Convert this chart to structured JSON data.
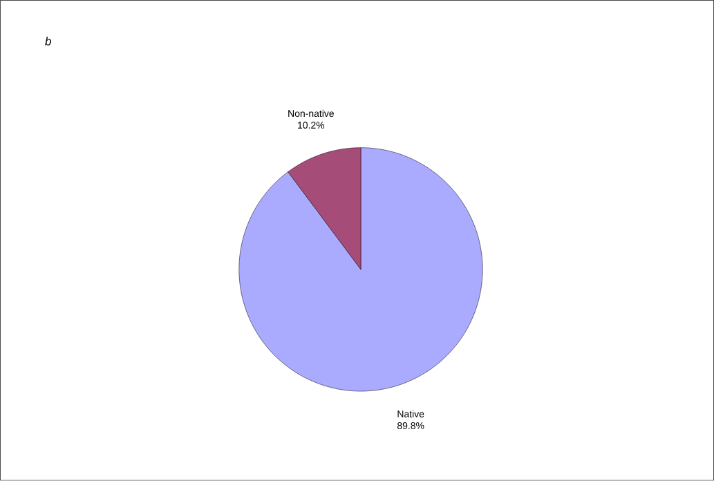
{
  "chart_data": {
    "type": "pie",
    "title": "b",
    "categories": [
      "Native",
      "Non-native"
    ],
    "values": [
      89.8,
      10.2
    ],
    "colors": [
      "#aaaaff",
      "#a64c78"
    ],
    "value_labels": [
      "89.8%",
      "10.2%"
    ]
  }
}
